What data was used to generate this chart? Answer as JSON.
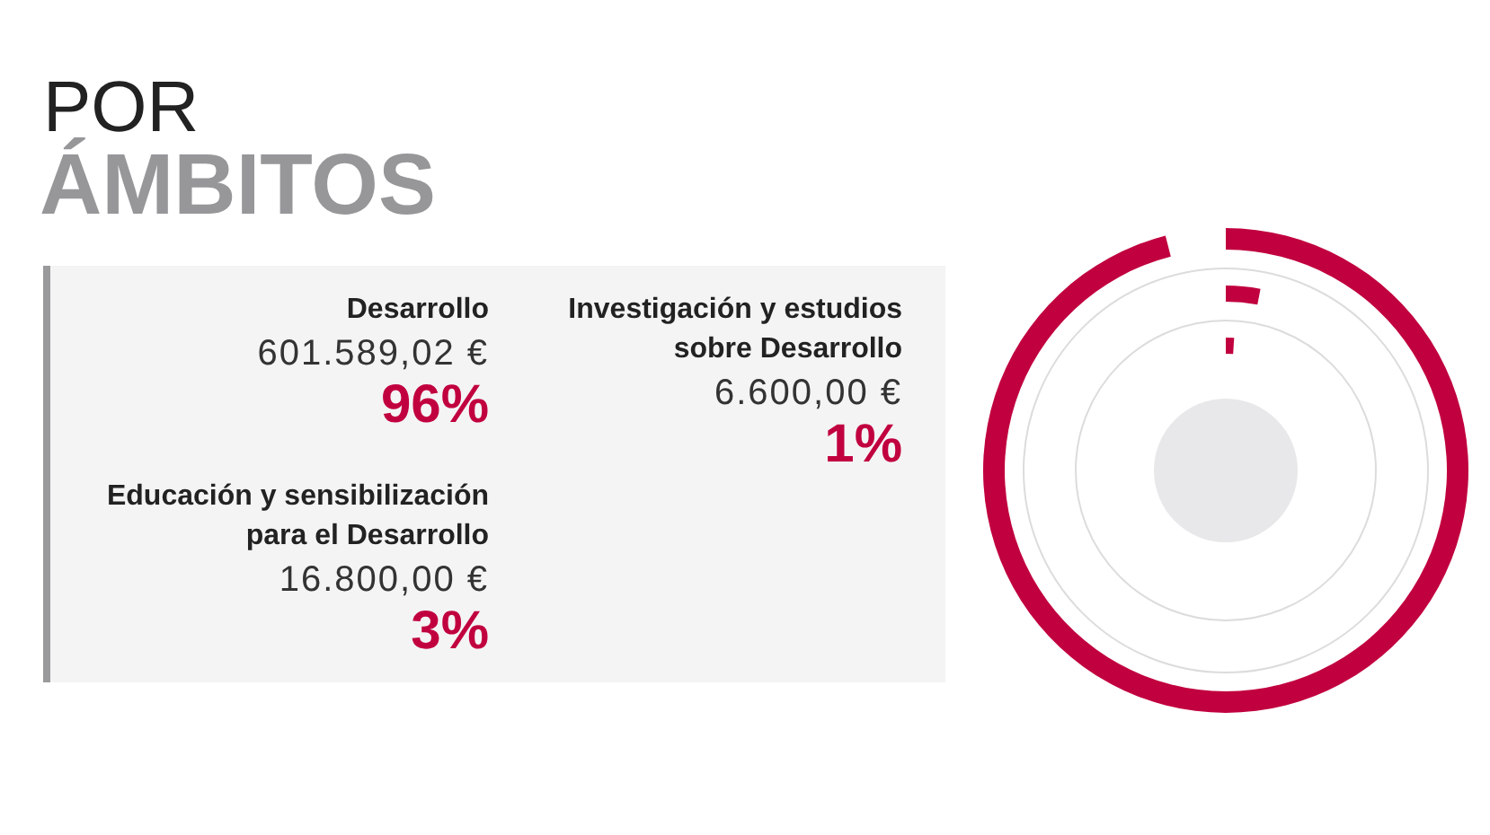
{
  "chart_data": {
    "type": "other",
    "title": "POR",
    "subtitle": "ÁMBITOS",
    "categories": [
      "Desarrollo",
      "Educación y sensibilización para el Desarrollo",
      "Investigación y estudios sobre Desarrollo"
    ],
    "values": [
      96,
      3,
      1
    ],
    "value_labels": [
      "96%",
      "3%",
      "1%"
    ],
    "annotations": [
      {
        "text": "601.589,02 €",
        "x": "Desarrollo"
      },
      {
        "text": "16.800,00 €",
        "x": "Educación y sensibilización para el Desarrollo"
      },
      {
        "text": "6.600,00 €",
        "x": "Investigación y estudios sobre Desarrollo"
      }
    ]
  }
}
